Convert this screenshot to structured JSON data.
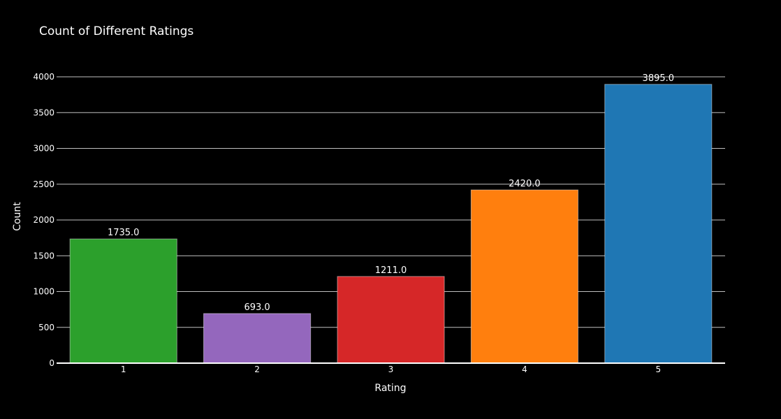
{
  "chart_data": {
    "type": "bar",
    "title": "Count of Different Ratings",
    "xlabel": "Rating",
    "ylabel": "Count",
    "categories": [
      "1",
      "2",
      "3",
      "4",
      "5"
    ],
    "values": [
      1735,
      693,
      1211,
      2420,
      3895
    ],
    "data_labels": [
      "1735.0",
      "693.0",
      "1211.0",
      "2420.0",
      "3895.0"
    ],
    "bar_colors": [
      "#2ca02c",
      "#9467bd",
      "#d62728",
      "#ff7f0e",
      "#1f77b4"
    ],
    "ylim": [
      0,
      4100
    ],
    "yticks": [
      0,
      500,
      1000,
      1500,
      2000,
      2500,
      3000,
      3500,
      4000
    ],
    "grid": true,
    "background": "#000000",
    "legend": "none"
  }
}
